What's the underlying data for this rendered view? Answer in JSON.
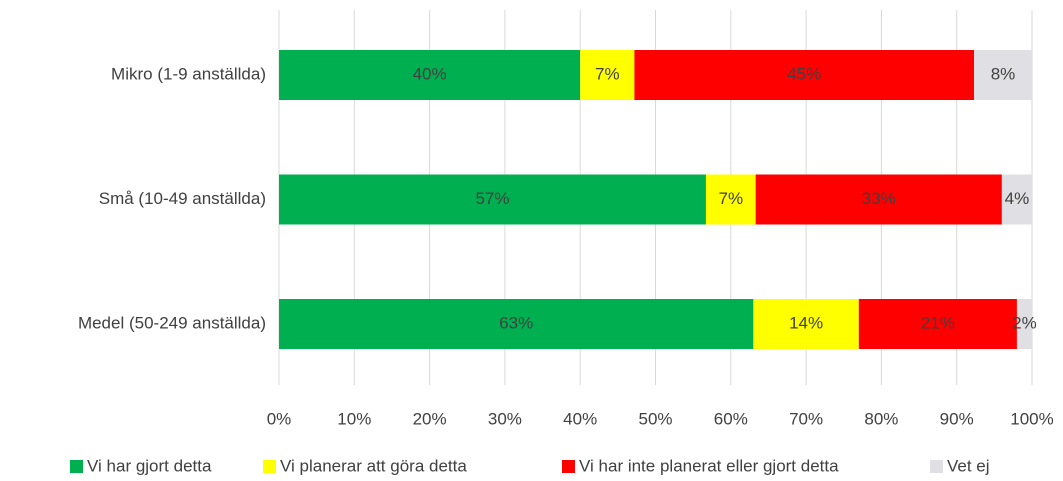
{
  "chart_data": {
    "type": "stacked-barh",
    "categories": [
      "Mikro (1-9 anställda)",
      "Små (10-49 anställda)",
      "Medel (50-249 anställda)"
    ],
    "series": [
      {
        "name": "Vi har gjort detta",
        "color": "#00b050",
        "values": [
          40,
          56.7,
          63
        ],
        "value_labels": [
          "40%",
          "57%",
          "63%"
        ]
      },
      {
        "name": "Vi planerar att göra detta",
        "color": "#ffff00",
        "values": [
          7.2,
          6.6,
          14
        ],
        "value_labels": [
          "7%",
          "7%",
          "14%"
        ]
      },
      {
        "name": "Vi har inte planerat eller gjort detta",
        "color": "#ff0000",
        "values": [
          45.1,
          32.7,
          21
        ],
        "value_labels": [
          "45%",
          "33%",
          "21%"
        ]
      },
      {
        "name": "Vet ej",
        "color": "#e0e0e4",
        "values": [
          7.7,
          4,
          2
        ],
        "value_labels": [
          "8%",
          "4%",
          "2%"
        ]
      }
    ],
    "xlim": [
      0,
      100
    ],
    "xticks": [
      {
        "value": 0,
        "label": "0%"
      },
      {
        "value": 10,
        "label": "10%"
      },
      {
        "value": 20,
        "label": "20%"
      },
      {
        "value": 30,
        "label": "30%"
      },
      {
        "value": 40,
        "label": "40%"
      },
      {
        "value": 50,
        "label": "50%"
      },
      {
        "value": 60,
        "label": "60%"
      },
      {
        "value": 70,
        "label": "70%"
      },
      {
        "value": 80,
        "label": "80%"
      },
      {
        "value": 90,
        "label": "90%"
      },
      {
        "value": 100,
        "label": "100%"
      }
    ],
    "grid": true,
    "legend": "bottom"
  }
}
